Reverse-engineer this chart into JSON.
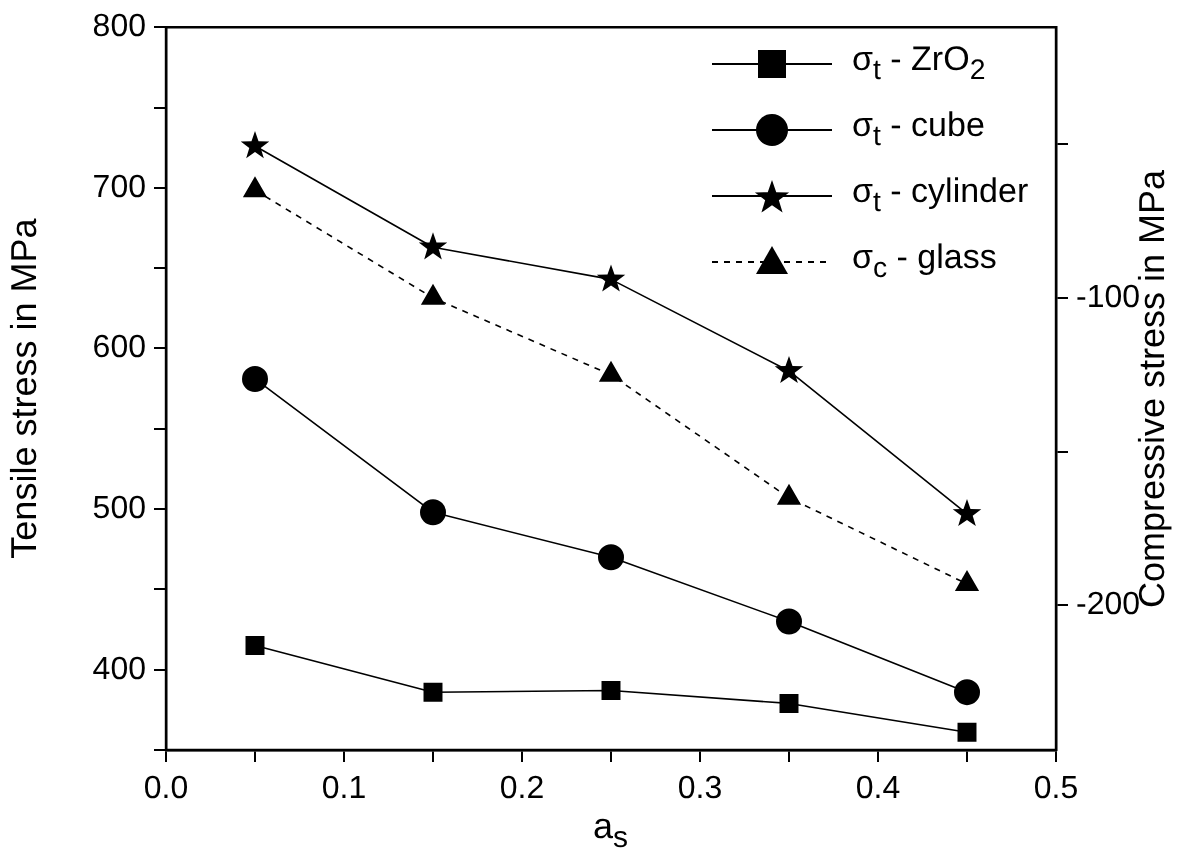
{
  "chart_data": {
    "type": "line",
    "xlabel": "a$_{s}$",
    "ylabel": "Tensile stress in MPa",
    "y2label": "Compressive stress in MPa",
    "x": [
      0.05,
      0.15,
      0.25,
      0.35,
      0.45
    ],
    "xlim": [
      0,
      0.5
    ],
    "xticks": [
      {
        "value": 0,
        "label": "0.0"
      },
      {
        "value": 0.05,
        "label": null
      },
      0.1,
      {
        "value": 0.15,
        "label": null
      },
      0.2,
      {
        "value": 0.25,
        "label": null
      },
      0.3,
      {
        "value": 0.35,
        "label": null
      },
      0.4,
      {
        "value": 0.45,
        "label": null
      },
      0.5
    ],
    "ylim": [
      350,
      800
    ],
    "yticks": [
      {
        "value": 350,
        "label": null
      },
      400,
      {
        "value": 450,
        "label": null
      },
      500,
      {
        "value": 550,
        "label": null
      },
      600,
      {
        "value": 650,
        "label": null
      },
      700,
      {
        "value": 750,
        "label": null
      },
      800
    ],
    "y2lim": [
      -247,
      -12
    ],
    "y2ticks": [
      {
        "value": -50,
        "label": null
      },
      -100,
      {
        "value": -150,
        "label": null
      },
      -200
    ],
    "legend": "top right",
    "series": [
      {
        "name": "σ$_{t}$ - ZrO$_{2}$",
        "color": "#000000",
        "marker": "square",
        "line_style": "solid",
        "values": [
          415,
          386,
          387,
          379,
          361
        ]
      },
      {
        "name": "σ$_{t}$ - cube",
        "color": "#000000",
        "marker": "circle",
        "line_style": "solid",
        "values": [
          581,
          498,
          470,
          430,
          386
        ]
      },
      {
        "name": "σ$_{t}$ - cylinder",
        "color": "#000000",
        "marker": "star",
        "line_style": "solid",
        "values": [
          726,
          663,
          643,
          586,
          497
        ]
      },
      {
        "name": "σ$_{c}$ - glass",
        "color": "#000000",
        "marker": "triangle",
        "line_style": "dashed",
        "axis": "y2",
        "values": [
          -65,
          -100,
          -125,
          -165,
          -193
        ]
      }
    ]
  }
}
